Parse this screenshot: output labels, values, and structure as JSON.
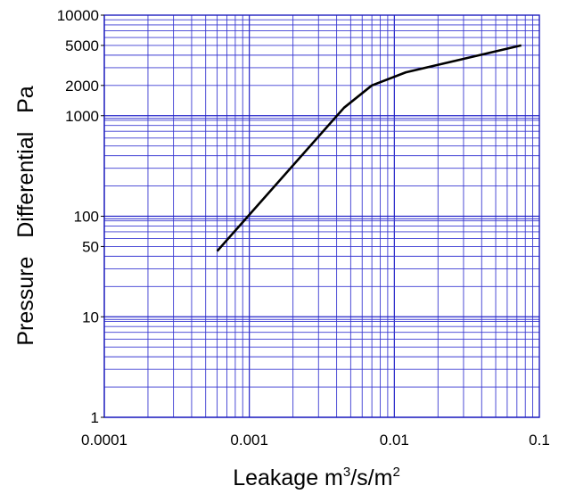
{
  "chart_data": {
    "type": "line",
    "title": "",
    "xlabel_parts": {
      "text": "Leakage m",
      "sup1": "3",
      "mid": "/s/m",
      "sup2": "2"
    },
    "ylabel": "Pressure   Differential   Pa",
    "x_scale": "log",
    "y_scale": "log",
    "xlim": [
      0.0001,
      0.1
    ],
    "ylim": [
      1,
      10000
    ],
    "grid": true,
    "x_ticks": [
      "0.0001",
      "0.001",
      "0.01",
      "0.1"
    ],
    "y_ticks": [
      "1",
      "10",
      "50",
      "100",
      "1000",
      "2000",
      "5000",
      "10000"
    ],
    "series": [
      {
        "x": [
          0.0006,
          0.0045,
          0.007,
          0.012,
          0.075
        ],
        "y": [
          45,
          1200,
          2000,
          2700,
          5000
        ],
        "color": "#000000"
      }
    ]
  },
  "colors": {
    "grid": "#2323c8",
    "line": "#000000"
  }
}
